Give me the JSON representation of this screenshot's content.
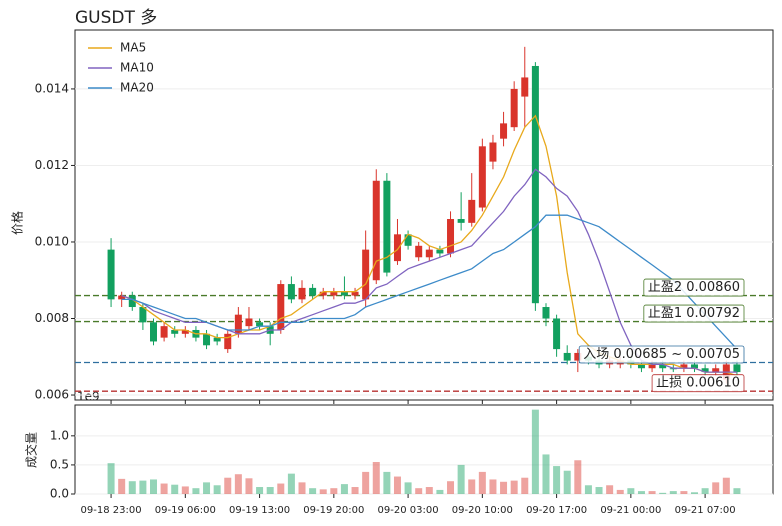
{
  "chart_data": {
    "type": "candlestick",
    "title": "GUSDT  多",
    "ylabel": "价格",
    "categories": [
      "09-18 23:00",
      null,
      null,
      null,
      null,
      null,
      null,
      "09-19 06:00",
      null,
      null,
      null,
      null,
      null,
      null,
      "09-19 13:00",
      null,
      null,
      null,
      null,
      null,
      null,
      "09-19 20:00",
      null,
      null,
      null,
      null,
      null,
      null,
      "09-20 03:00",
      null,
      null,
      null,
      null,
      null,
      null,
      "09-20 10:00",
      null,
      null,
      null,
      null,
      null,
      null,
      "09-20 17:00",
      null,
      null,
      null,
      null,
      null,
      null,
      "09-21 00:00",
      null,
      null,
      null,
      null,
      null,
      null,
      "09-21 07:00",
      null,
      null,
      null
    ],
    "xlim": [
      -3.4,
      62.4
    ],
    "ylim": [
      0.00587,
      0.01554
    ],
    "yticks": [
      0.006,
      0.008,
      {
        "value": 0.01,
        "label": "0.010"
      },
      0.012,
      0.014
    ],
    "grid": true,
    "up_color": "#d9342b",
    "down_color": "#12a05f",
    "open": [
      0.0098,
      0.0085,
      0.0086,
      0.0083,
      0.0079,
      0.0075,
      0.0077,
      0.0076,
      0.0077,
      0.0076,
      0.0075,
      0.0072,
      0.0076,
      0.0078,
      0.0079,
      0.0078,
      0.0077,
      0.0089,
      0.0085,
      0.0088,
      0.0086,
      0.0086,
      0.0087,
      0.0086,
      0.0085,
      0.009,
      0.0116,
      0.0095,
      0.0102,
      0.0096,
      0.0096,
      0.0098,
      0.0097,
      0.0106,
      0.0105,
      0.0109,
      0.0121,
      0.0127,
      0.013,
      0.0138,
      0.0146,
      0.0083,
      0.008,
      0.0071,
      0.0069,
      0.007,
      0.0069,
      0.0068,
      0.0068,
      0.0069,
      0.0068,
      0.0067,
      0.0068,
      0.0067,
      0.0067,
      0.0068,
      0.0067,
      0.0066,
      0.0064,
      0.0068
    ],
    "high": [
      0.0101,
      0.0087,
      0.0087,
      0.0084,
      0.008,
      0.0079,
      0.0078,
      0.0078,
      0.0078,
      0.0077,
      0.0076,
      0.0077,
      0.0083,
      0.0083,
      0.008,
      0.0079,
      0.009,
      0.0091,
      0.009,
      0.0089,
      0.0088,
      0.0088,
      0.0091,
      0.0088,
      0.0103,
      0.0119,
      0.0118,
      0.0106,
      0.0103,
      0.01,
      0.0099,
      0.0099,
      0.0108,
      0.0113,
      0.0118,
      0.0127,
      0.0128,
      0.0134,
      0.0142,
      0.0151,
      0.0147,
      0.0084,
      0.0081,
      0.0073,
      0.0072,
      0.0071,
      0.007,
      0.007,
      0.007,
      0.007,
      0.0069,
      0.0069,
      0.0069,
      0.0068,
      0.0069,
      0.0069,
      0.0068,
      0.0068,
      0.0069,
      0.0069
    ],
    "low": [
      0.0083,
      0.0083,
      0.0082,
      0.0077,
      0.0073,
      0.0074,
      0.0075,
      0.0075,
      0.0074,
      0.0072,
      0.0073,
      0.0071,
      0.0075,
      0.0077,
      0.0077,
      0.0073,
      0.0076,
      0.0084,
      0.0084,
      0.0085,
      0.0085,
      0.0085,
      0.0085,
      0.0085,
      0.0083,
      0.0089,
      0.0091,
      0.0094,
      0.0098,
      0.0095,
      0.0095,
      0.0096,
      0.0096,
      0.0103,
      0.0104,
      0.0108,
      0.0119,
      0.0125,
      0.0129,
      0.013,
      0.0082,
      0.0078,
      0.007,
      0.0068,
      0.0066,
      0.0068,
      0.0067,
      0.0067,
      0.0067,
      0.0067,
      0.0066,
      0.0066,
      0.0066,
      0.0066,
      0.0066,
      0.0066,
      0.0065,
      0.0065,
      0.0063,
      0.0065
    ],
    "close": [
      0.0085,
      0.0086,
      0.0083,
      0.0079,
      0.0074,
      0.0078,
      0.0076,
      0.0077,
      0.0075,
      0.0073,
      0.0074,
      0.0076,
      0.0081,
      0.008,
      0.0078,
      0.0076,
      0.0089,
      0.0085,
      0.0088,
      0.0086,
      0.0087,
      0.0087,
      0.0086,
      0.0087,
      0.0098,
      0.0116,
      0.0092,
      0.0102,
      0.0099,
      0.0099,
      0.0098,
      0.0097,
      0.0106,
      0.0105,
      0.0111,
      0.0125,
      0.0126,
      0.0131,
      0.014,
      0.0143,
      0.0084,
      0.008,
      0.0072,
      0.0069,
      0.0071,
      0.0069,
      0.0068,
      0.0069,
      0.0069,
      0.0068,
      0.0067,
      0.0068,
      0.0067,
      0.00668,
      0.0068,
      0.0067,
      0.0066,
      0.0067,
      0.0068,
      0.0066
    ],
    "ma_series": [
      {
        "name": "MA5",
        "color": "#e8a91c",
        "values": [
          null,
          0.0086,
          0.0085,
          0.0083,
          0.0081,
          0.0079,
          0.0077,
          0.0077,
          0.0076,
          0.0076,
          0.0075,
          0.0075,
          0.0076,
          0.0077,
          0.0077,
          0.0078,
          0.008,
          0.0081,
          0.0083,
          0.0085,
          0.0087,
          0.0087,
          0.0087,
          0.0087,
          0.0089,
          0.0095,
          0.0096,
          0.0098,
          0.0102,
          0.0101,
          0.0099,
          0.0098,
          0.0099,
          0.01,
          0.0103,
          0.0107,
          0.0112,
          0.0117,
          0.0124,
          0.013,
          0.0133,
          0.0125,
          0.0112,
          0.0092,
          0.0076,
          0.0073,
          0.0071,
          0.007,
          0.0069,
          0.0068,
          0.0068,
          0.0068,
          0.0068,
          0.0068,
          0.0067,
          0.0067,
          0.0066,
          0.0066,
          0.0066,
          0.0065
        ]
      },
      {
        "name": "MA10",
        "color": "#8064c0",
        "values": [
          null,
          0.0086,
          0.0085,
          0.0084,
          0.0082,
          0.0081,
          0.008,
          0.0079,
          0.0079,
          0.0079,
          0.0078,
          0.0077,
          0.0076,
          0.0076,
          0.0076,
          0.0077,
          0.0077,
          0.0079,
          0.008,
          0.0081,
          0.0082,
          0.0083,
          0.0084,
          0.0084,
          0.0085,
          0.0088,
          0.0089,
          0.0091,
          0.0093,
          0.0094,
          0.0095,
          0.0096,
          0.0097,
          0.0098,
          0.0099,
          0.0102,
          0.0105,
          0.0108,
          0.0112,
          0.0115,
          0.0119,
          0.0117,
          0.0114,
          0.0112,
          0.0108,
          0.0102,
          0.0095,
          0.0087,
          0.0079,
          0.0073,
          0.0069,
          0.0068,
          0.0068,
          0.0067,
          0.0067,
          0.0067,
          0.0066,
          0.0066,
          0.0066,
          0.0066
        ]
      },
      {
        "name": "MA20",
        "color": "#3d8bc9",
        "values": [
          null,
          0.0085,
          0.0085,
          0.0084,
          0.0083,
          0.0082,
          0.0081,
          0.008,
          0.008,
          0.0079,
          0.0078,
          0.0077,
          0.0077,
          0.0077,
          0.0078,
          0.0078,
          0.0079,
          0.0079,
          0.0079,
          0.008,
          0.008,
          0.008,
          0.008,
          0.0081,
          0.0083,
          0.0084,
          0.0085,
          0.0086,
          0.0087,
          0.0088,
          0.0089,
          0.009,
          0.0091,
          0.0092,
          0.0093,
          0.0095,
          0.0097,
          0.0098,
          0.01,
          0.0102,
          0.0104,
          0.0107,
          0.0107,
          0.0107,
          0.0106,
          0.0105,
          0.0104,
          0.0102,
          0.01,
          0.0098,
          0.0096,
          0.0094,
          0.0092,
          0.009,
          0.0087,
          0.0084,
          0.0081,
          0.0078,
          0.0075,
          0.0072
        ]
      }
    ],
    "levels": [
      {
        "label": "止盈2 0.00860",
        "value": 0.0086,
        "color": "#4a7a2a"
      },
      {
        "label": "止盈1 0.00792",
        "value": 0.00792,
        "color": "#4a7a2a"
      },
      {
        "label": "入场 0.00685 ~ 0.00705",
        "value": 0.00685,
        "color": "#2f6f9f"
      },
      {
        "label": "止损 0.00610",
        "value": 0.0061,
        "color": "#b83232"
      }
    ],
    "volume_panel": {
      "ylabel": "成交量",
      "offset_label": "1e9",
      "ylim": [
        0,
        1.53
      ],
      "yticks": [
        {
          "value": 0,
          "label": "0.0"
        },
        {
          "value": 0.5,
          "label": "0.5"
        },
        {
          "value": 1.0,
          "label": "1.0"
        }
      ],
      "values": [
        0.53,
        0.26,
        0.22,
        0.23,
        0.25,
        0.18,
        0.16,
        0.13,
        0.1,
        0.2,
        0.15,
        0.28,
        0.34,
        0.27,
        0.12,
        0.12,
        0.18,
        0.35,
        0.2,
        0.1,
        0.08,
        0.1,
        0.17,
        0.12,
        0.38,
        0.55,
        0.38,
        0.3,
        0.2,
        0.1,
        0.12,
        0.07,
        0.22,
        0.5,
        0.25,
        0.38,
        0.25,
        0.21,
        0.23,
        0.28,
        1.45,
        0.68,
        0.48,
        0.4,
        0.58,
        0.15,
        0.12,
        0.15,
        0.07,
        0.1,
        0.05,
        0.05,
        0.02,
        0.05,
        0.05,
        0.03,
        0.1,
        0.2,
        0.28,
        0.1
      ]
    }
  }
}
